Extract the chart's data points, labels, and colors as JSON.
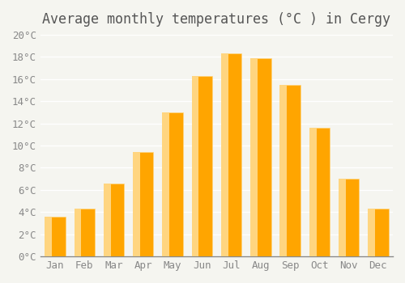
{
  "months": [
    "Jan",
    "Feb",
    "Mar",
    "Apr",
    "May",
    "Jun",
    "Jul",
    "Aug",
    "Sep",
    "Oct",
    "Nov",
    "Dec"
  ],
  "temperatures": [
    3.6,
    4.3,
    6.6,
    9.4,
    13.0,
    16.3,
    18.3,
    17.9,
    15.5,
    11.6,
    7.0,
    4.3
  ],
  "bar_color_main": "#FFA500",
  "bar_color_light": "#FFD580",
  "title": "Average monthly temperatures (°C ) in Cergy",
  "ylim": [
    0,
    20
  ],
  "ytick_step": 2,
  "background_color": "#f5f5f0",
  "grid_color": "#ffffff",
  "title_fontsize": 12,
  "tick_fontsize": 9,
  "font_family": "monospace"
}
